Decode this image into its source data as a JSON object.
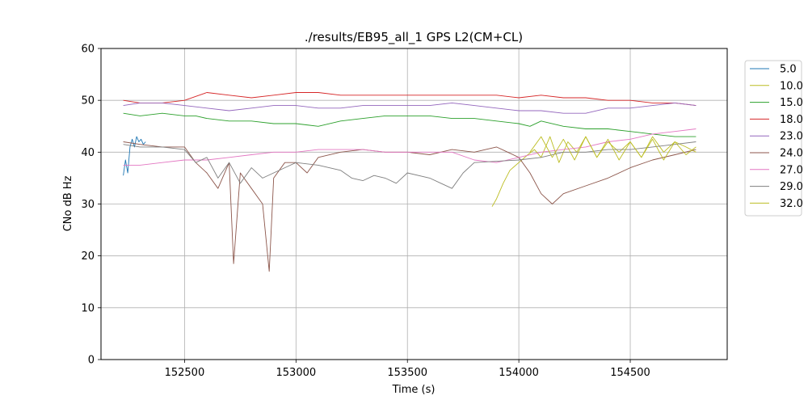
{
  "chart_data": {
    "type": "line",
    "title": "./results/EB95_all_1 GPS L2(CM+CL)",
    "xlabel": "Time (s)",
    "ylabel": "CNo dB Hz",
    "xlim": [
      152125,
      154935
    ],
    "ylim": [
      0,
      60
    ],
    "xticks": [
      152500,
      153000,
      153500,
      154000,
      154500
    ],
    "yticks": [
      0,
      10,
      20,
      30,
      40,
      50,
      60
    ],
    "grid": true,
    "legend_position": "outside-right-top",
    "series": [
      {
        "name": "5.0",
        "color": "#1f77b4",
        "x": [
          152225,
          152235,
          152245,
          152255,
          152265,
          152275,
          152285,
          152295,
          152305,
          152315,
          152325
        ],
        "y": [
          35.5,
          38.5,
          36,
          41,
          42.5,
          41,
          43,
          42,
          42.5,
          41.5,
          42
        ]
      },
      {
        "name": "10.0",
        "color": "#bcbd22",
        "x": [
          153880,
          153900,
          153930,
          153960,
          154000,
          154040,
          154070,
          154100,
          154140,
          154180,
          154220,
          154260,
          154300,
          154350,
          154400,
          154450,
          154500,
          154550,
          154600,
          154650,
          154700,
          154750,
          154795
        ],
        "y": [
          29.5,
          31,
          34,
          36.5,
          38,
          39.5,
          40.5,
          39,
          43,
          38,
          42,
          40,
          43,
          39,
          42,
          40,
          42,
          39,
          43,
          40,
          42,
          41,
          40
        ]
      },
      {
        "name": "15.0",
        "color": "#2ca02c",
        "x": [
          152225,
          152300,
          152400,
          152500,
          152550,
          152600,
          152700,
          152800,
          152900,
          153000,
          153100,
          153200,
          153300,
          153400,
          153500,
          153600,
          153700,
          153800,
          153900,
          154000,
          154050,
          154100,
          154200,
          154300,
          154400,
          154500,
          154600,
          154700,
          154795
        ],
        "y": [
          47.5,
          47,
          47.5,
          47,
          47,
          46.5,
          46,
          46,
          45.5,
          45.5,
          45,
          46,
          46.5,
          47,
          47,
          47,
          46.5,
          46.5,
          46,
          45.5,
          45,
          46,
          45,
          44.5,
          44.5,
          44,
          43.5,
          43,
          43
        ]
      },
      {
        "name": "18.0",
        "color": "#d62728",
        "x": [
          152225,
          152300,
          152400,
          152500,
          152600,
          152700,
          152800,
          152900,
          153000,
          153100,
          153200,
          153300,
          153400,
          153500,
          153600,
          153700,
          153800,
          153900,
          154000,
          154100,
          154200,
          154300,
          154400,
          154500,
          154600,
          154700,
          154795
        ],
        "y": [
          50,
          49.5,
          49.5,
          50,
          51.5,
          51,
          50.5,
          51,
          51.5,
          51.5,
          51,
          51,
          51,
          51,
          51,
          51,
          51,
          51,
          50.5,
          51,
          50.5,
          50.5,
          50,
          50,
          49.5,
          49.5,
          49
        ]
      },
      {
        "name": "23.0",
        "color": "#9467bd",
        "x": [
          152225,
          152300,
          152400,
          152500,
          152600,
          152700,
          152800,
          152900,
          153000,
          153100,
          153200,
          153300,
          153400,
          153500,
          153600,
          153700,
          153800,
          153900,
          154000,
          154100,
          154200,
          154300,
          154400,
          154500,
          154600,
          154700,
          154795
        ],
        "y": [
          49,
          49.5,
          49.5,
          49,
          48.5,
          48,
          48.5,
          49,
          49,
          48.5,
          48.5,
          49,
          49,
          49,
          49,
          49.5,
          49,
          48.5,
          48,
          48,
          47.5,
          47.5,
          48.5,
          48.5,
          49,
          49.5,
          49
        ]
      },
      {
        "name": "24.0",
        "color": "#8c564b",
        "x": [
          152225,
          152300,
          152400,
          152500,
          152550,
          152600,
          152650,
          152700,
          152720,
          152750,
          152800,
          152850,
          152880,
          152900,
          152950,
          153000,
          153050,
          153100,
          153200,
          153300,
          153400,
          153500,
          153600,
          153700,
          153800,
          153900,
          153950,
          154000,
          154050,
          154100,
          154150,
          154200,
          154300,
          154400,
          154500,
          154600,
          154700,
          154795
        ],
        "y": [
          42,
          41.5,
          41,
          41,
          38,
          36,
          33,
          38,
          18.5,
          36,
          33,
          30,
          17,
          35,
          38,
          38,
          36,
          39,
          40,
          40.5,
          40,
          40,
          39.5,
          40.5,
          40,
          41,
          40,
          39,
          36,
          32,
          30,
          32,
          33.5,
          35,
          37,
          38.5,
          39.5,
          40.5
        ]
      },
      {
        "name": "27.0",
        "color": "#e377c2",
        "x": [
          152225,
          152300,
          152400,
          152500,
          152600,
          152700,
          152800,
          152900,
          153000,
          153100,
          153200,
          153300,
          153400,
          153500,
          153600,
          153700,
          153800,
          153900,
          154000,
          154100,
          154200,
          154300,
          154400,
          154500,
          154600,
          154700,
          154795
        ],
        "y": [
          37.5,
          37.5,
          38,
          38.5,
          38.5,
          39,
          39.5,
          40,
          40,
          40.5,
          40.5,
          40.5,
          40,
          40,
          40,
          40,
          38.5,
          38,
          39,
          40,
          40.5,
          41,
          42,
          42.5,
          43.5,
          44,
          44.5
        ]
      },
      {
        "name": "29.0",
        "color": "#7f7f7f",
        "x": [
          152225,
          152300,
          152400,
          152500,
          152550,
          152600,
          152650,
          152700,
          152750,
          152800,
          152850,
          152900,
          152950,
          153000,
          153100,
          153200,
          153250,
          153300,
          153350,
          153400,
          153450,
          153500,
          153600,
          153650,
          153700,
          153750,
          153800,
          154000,
          154100,
          154200,
          154300,
          154400,
          154500,
          154600,
          154700,
          154795
        ],
        "y": [
          41.5,
          41,
          41,
          40.5,
          38,
          39,
          35,
          38,
          34,
          37,
          35,
          36,
          37,
          38,
          37.5,
          36.5,
          35,
          34.5,
          35.5,
          35,
          34,
          36,
          35,
          34,
          33,
          36,
          38,
          38.5,
          39,
          40,
          40,
          40.5,
          40.5,
          41,
          41.5,
          42
        ]
      },
      {
        "name": "32.0",
        "color": "#bcbd22",
        "x": [
          154050,
          154100,
          154150,
          154200,
          154250,
          154300,
          154350,
          154400,
          154450,
          154500,
          154550,
          154600,
          154650,
          154700,
          154750,
          154795
        ],
        "y": [
          40,
          43,
          39,
          42.5,
          38.5,
          43,
          39,
          42.5,
          38.5,
          42,
          39,
          42.5,
          38.5,
          42,
          39.5,
          41
        ]
      }
    ]
  }
}
